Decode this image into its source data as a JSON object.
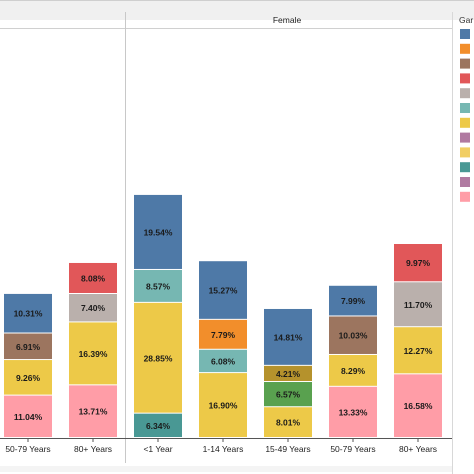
{
  "header": {
    "facet_label": "Female",
    "legend_title": "Gar"
  },
  "legend": {
    "swatches": [
      "#4e79a7",
      "#f28e2b",
      "#9c755f",
      "#e15759",
      "#bab0ac",
      "#76b7b2",
      "#edc948",
      "#b07aa1",
      "#f1ce63",
      "#499894",
      "#b07aa1",
      "#ff9da7"
    ]
  },
  "chart_data": {
    "type": "bar",
    "stacked": true,
    "facets": [
      "",
      "Female"
    ],
    "ylim": [
      0,
      100
    ],
    "colors": {
      "blue": "#4e79a7",
      "orange": "#f28e2b",
      "brown": "#9c755f",
      "red": "#e15759",
      "gray": "#bab0ac",
      "teal": "#76b7b2",
      "yellow": "#edc948",
      "olive": "#b5922c",
      "green": "#59a14f",
      "pink": "#ff9da7",
      "darkteal": "#499894"
    },
    "bars": [
      {
        "facet": "",
        "category": "50-79 Years",
        "segments": [
          {
            "value": 11.04,
            "label": "11.04%",
            "color": "#ff9da7"
          },
          {
            "value": 9.26,
            "label": "9.26%",
            "color": "#edc948"
          },
          {
            "value": 6.91,
            "label": "6.91%",
            "color": "#9c755f"
          },
          {
            "value": 10.31,
            "label": "10.31%",
            "color": "#4e79a7"
          }
        ]
      },
      {
        "facet": "",
        "category": "80+ Years",
        "segments": [
          {
            "value": 13.71,
            "label": "13.71%",
            "color": "#ff9da7"
          },
          {
            "value": 16.39,
            "label": "16.39%",
            "color": "#edc948"
          },
          {
            "value": 7.4,
            "label": "7.40%",
            "color": "#bab0ac"
          },
          {
            "value": 8.08,
            "label": "8.08%",
            "color": "#e15759"
          }
        ]
      },
      {
        "facet": "Female",
        "category": "<1 Year",
        "segments": [
          {
            "value": 6.34,
            "label": "6.34%",
            "color": "#499894"
          },
          {
            "value": 28.85,
            "label": "28.85%",
            "color": "#edc948"
          },
          {
            "value": 8.57,
            "label": "8.57%",
            "color": "#76b7b2"
          },
          {
            "value": 19.54,
            "label": "19.54%",
            "color": "#4e79a7"
          }
        ]
      },
      {
        "facet": "Female",
        "category": "1-14 Years",
        "segments": [
          {
            "value": 16.9,
            "label": "16.90%",
            "color": "#edc948"
          },
          {
            "value": 6.08,
            "label": "6.08%",
            "color": "#76b7b2"
          },
          {
            "value": 7.79,
            "label": "7.79%",
            "color": "#f28e2b"
          },
          {
            "value": 15.27,
            "label": "15.27%",
            "color": "#4e79a7"
          }
        ]
      },
      {
        "facet": "Female",
        "category": "15-49 Years",
        "segments": [
          {
            "value": 8.01,
            "label": "8.01%",
            "color": "#edc948"
          },
          {
            "value": 6.57,
            "label": "6.57%",
            "color": "#59a14f"
          },
          {
            "value": 4.21,
            "label": "4.21%",
            "color": "#b5922c"
          },
          {
            "value": 14.81,
            "label": "14.81%",
            "color": "#4e79a7"
          }
        ]
      },
      {
        "facet": "Female",
        "category": "50-79 Years",
        "segments": [
          {
            "value": 13.33,
            "label": "13.33%",
            "color": "#ff9da7"
          },
          {
            "value": 8.29,
            "label": "8.29%",
            "color": "#edc948"
          },
          {
            "value": 10.03,
            "label": "10.03%",
            "color": "#9c755f"
          },
          {
            "value": 7.99,
            "label": "7.99%",
            "color": "#4e79a7"
          }
        ]
      },
      {
        "facet": "Female",
        "category": "80+ Years",
        "segments": [
          {
            "value": 16.58,
            "label": "16.58%",
            "color": "#ff9da7"
          },
          {
            "value": 12.27,
            "label": "12.27%",
            "color": "#edc948"
          },
          {
            "value": 11.7,
            "label": "11.70%",
            "color": "#bab0ac"
          },
          {
            "value": 9.97,
            "label": "9.97%",
            "color": "#e15759"
          }
        ]
      }
    ],
    "grid": false,
    "legend_position": "right"
  }
}
